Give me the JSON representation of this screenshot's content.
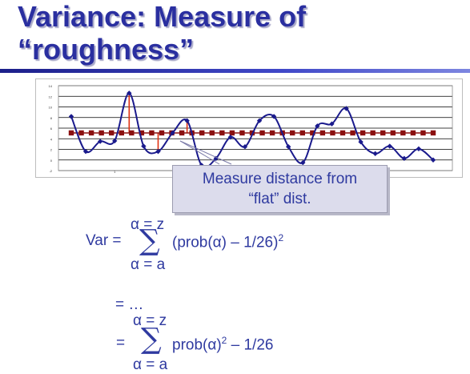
{
  "slide": {
    "title_line1": "Variance: Measure of",
    "title_line2": "“roughness”",
    "callout_line1": "Measure distance from",
    "callout_line2": "“flat” dist.",
    "formula1": {
      "upper_limit": "α = z",
      "lhs": "Var =",
      "sigma": "∑",
      "term": "(prob(α) – 1/26)",
      "exponent": "2",
      "lower_limit": "α = a"
    },
    "ellipsis": "= …",
    "formula2": {
      "upper_limit": "α = z",
      "lhs": "=",
      "sigma": "∑",
      "term_before": "prob(α)",
      "exponent": "2",
      "term_after": " – 1/26",
      "lower_limit": "α = a"
    }
  },
  "chart_data": {
    "type": "line",
    "ylim": [
      -2,
      14
    ],
    "y_ticks": [
      "-2",
      "0",
      "2",
      "4",
      "6",
      "8",
      "10",
      "12",
      "14"
    ],
    "x_tick_labels": [
      "1"
    ],
    "grid": true,
    "series": [
      {
        "values": [
          8.2,
          1.6,
          3.5,
          3.6,
          12.6,
          2.6,
          1.6,
          5.1,
          7.4,
          -1.0,
          0.3,
          4.3,
          2.5,
          7.4,
          8.2,
          2.5,
          -0.5,
          6.4,
          6.8,
          9.7,
          3.4,
          1.2,
          2.6,
          0.3,
          2.1,
          0.0
        ],
        "color": "#1a1a8c"
      },
      {
        "values": [
          5.1,
          5.1,
          5.1,
          5.1,
          5.1,
          5.1,
          5.1,
          5.1,
          5.1,
          5.1,
          5.1,
          5.1,
          5.1,
          5.1,
          5.1,
          5.1,
          5.1,
          5.1,
          5.1,
          5.1,
          5.1,
          5.1,
          5.1,
          5.1,
          5.1,
          5.1
        ],
        "color": "#8b1010"
      }
    ],
    "deviation_lines": [
      4,
      6,
      8
    ],
    "deviation_color": "#e03010"
  }
}
